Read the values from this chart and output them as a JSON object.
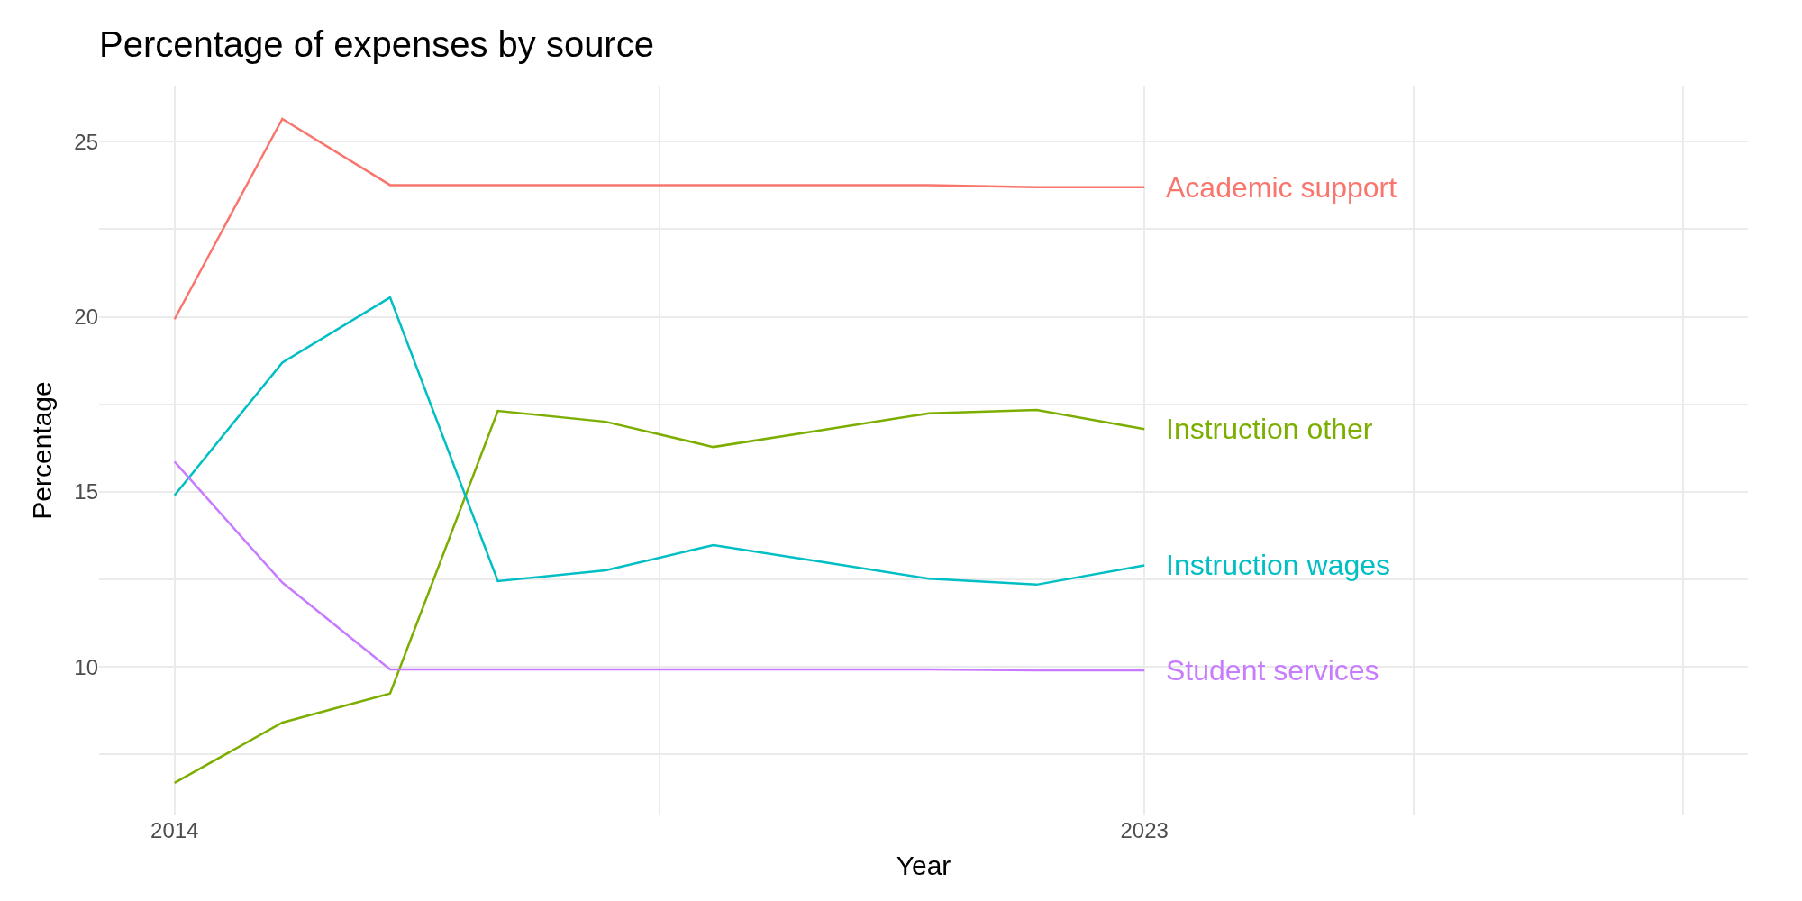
{
  "chart_data": {
    "type": "line",
    "title": "Percentage of expenses by source",
    "xlabel": "Year",
    "ylabel": "Percentage",
    "x": [
      2014,
      2015,
      2016,
      2017,
      2018,
      2019,
      2020,
      2021,
      2022,
      2023
    ],
    "series": [
      {
        "name": "Academic support",
        "color": "#f8766d",
        "values": [
          19.93,
          25.65,
          23.76,
          23.76,
          23.76,
          23.76,
          23.76,
          23.76,
          23.7,
          23.7
        ]
      },
      {
        "name": "Instruction other",
        "color": "#7cae00",
        "values": [
          6.69,
          8.41,
          9.24,
          17.31,
          17.0,
          16.28,
          16.76,
          17.24,
          17.34,
          16.79
        ]
      },
      {
        "name": "Instruction wages",
        "color": "#00bfc4",
        "values": [
          14.9,
          18.69,
          20.55,
          12.45,
          12.76,
          13.48,
          13.0,
          12.52,
          12.35,
          12.9
        ]
      },
      {
        "name": "Student services",
        "color": "#c77cff",
        "values": [
          15.86,
          12.41,
          9.93,
          9.93,
          9.93,
          9.93,
          9.93,
          9.93,
          9.9,
          9.9
        ]
      }
    ],
    "xlim": [
      2013.3,
      2028.6
    ],
    "ylim": [
      5.76,
      26.6
    ],
    "xticks": [
      2014,
      {
        "value": 2018.5,
        "label": null
      },
      2023,
      {
        "value": 2025.5,
        "label": null
      },
      {
        "value": 2028,
        "label": null
      }
    ],
    "yticks": [
      {
        "value": 7.5,
        "label": null
      },
      10,
      {
        "value": 12.5,
        "label": null
      },
      15,
      {
        "value": 17.5,
        "label": null
      },
      20,
      {
        "value": 22.5,
        "label": null
      },
      25
    ],
    "grid": true,
    "legend": false
  }
}
